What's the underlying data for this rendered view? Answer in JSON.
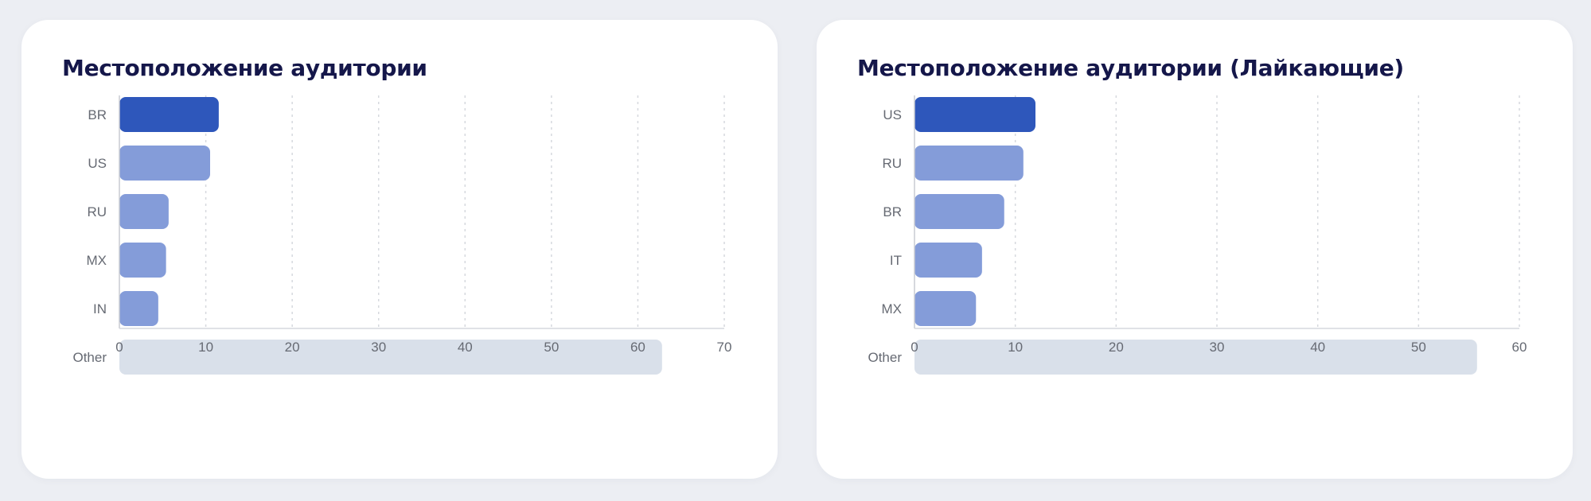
{
  "chart_data": [
    {
      "type": "bar",
      "orientation": "horizontal",
      "title": "Местоположение аудитории",
      "categories": [
        "BR",
        "US",
        "RU",
        "MX",
        "IN",
        "Other"
      ],
      "values": [
        11.5,
        10.5,
        5.7,
        5.4,
        4.5,
        62.8
      ],
      "xlim": [
        0,
        70
      ],
      "xticks": [
        0,
        10,
        20,
        30,
        40,
        50,
        60,
        70
      ],
      "grid": "vertical-dotted",
      "colors": [
        "#2e57bb",
        "#849cd9",
        "#849cd9",
        "#849cd9",
        "#849cd9",
        "#d9e0ea"
      ]
    },
    {
      "type": "bar",
      "orientation": "horizontal",
      "title": "Местоположение аудитории (Лайкающие)",
      "categories": [
        "US",
        "RU",
        "BR",
        "IT",
        "MX",
        "Other"
      ],
      "values": [
        12.0,
        10.8,
        8.9,
        6.7,
        6.1,
        55.8
      ],
      "xlim": [
        0,
        60
      ],
      "xticks": [
        0,
        10,
        20,
        30,
        40,
        50,
        60
      ],
      "grid": "vertical-dotted",
      "colors": [
        "#2e57bb",
        "#849cd9",
        "#849cd9",
        "#849cd9",
        "#849cd9",
        "#d9e0ea"
      ]
    }
  ]
}
